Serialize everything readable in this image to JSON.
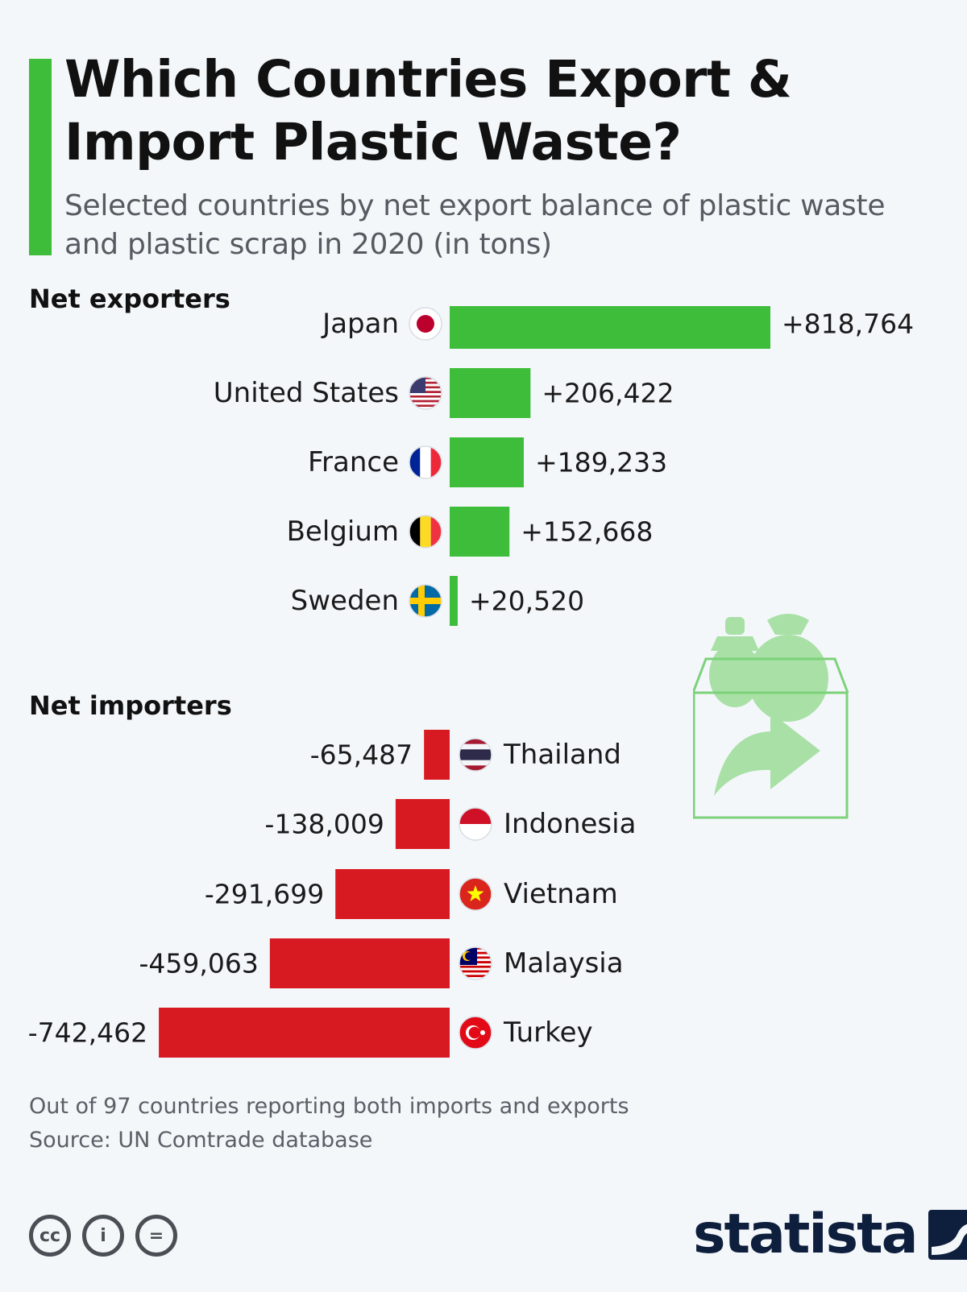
{
  "header": {
    "title_line1": "Which Countries Export &",
    "title_line2": "Import Plastic Waste?",
    "subtitle_line1": "Selected countries by net export balance of plastic waste",
    "subtitle_line2": "and plastic scrap in 2020 (in tons)"
  },
  "sections": {
    "exporters_label": "Net exporters",
    "importers_label": "Net importers"
  },
  "footer": {
    "note": "Out of 97 countries reporting both imports and exports",
    "source": "Source: UN Comtrade database",
    "cc_labels": [
      "cc",
      "i",
      "="
    ],
    "brand": "statista"
  },
  "colors": {
    "exporter_bar": "#3ebd3a",
    "importer_bar": "#d71a21",
    "accent": "#3ebd3a"
  },
  "chart_data": {
    "type": "bar",
    "orientation": "horizontal",
    "categories": [
      "Japan",
      "United States",
      "France",
      "Belgium",
      "Sweden",
      "Thailand",
      "Indonesia",
      "Vietnam",
      "Malaysia",
      "Turkey"
    ],
    "values": [
      818764,
      206422,
      189233,
      152668,
      20520,
      -65487,
      -138009,
      -291699,
      -459063,
      -742462
    ],
    "value_labels": [
      "+818,764",
      "+206,422",
      "+189,233",
      "+152,668",
      "+20,520",
      "-65,487",
      "-138,009",
      "-291,699",
      "-459,063",
      "-742,462"
    ],
    "groups": [
      "Net exporters",
      "Net exporters",
      "Net exporters",
      "Net exporters",
      "Net exporters",
      "Net importers",
      "Net importers",
      "Net importers",
      "Net importers",
      "Net importers"
    ],
    "flag_icons": [
      "japan-flag-icon",
      "united-states-flag-icon",
      "france-flag-icon",
      "belgium-flag-icon",
      "sweden-flag-icon",
      "thailand-flag-icon",
      "indonesia-flag-icon",
      "vietnam-flag-icon",
      "malaysia-flag-icon",
      "turkey-flag-icon"
    ],
    "title": "Which Countries Export & Import Plastic Waste?",
    "xlim": [
      -742462,
      818764
    ],
    "grid": false,
    "legend": "none"
  }
}
